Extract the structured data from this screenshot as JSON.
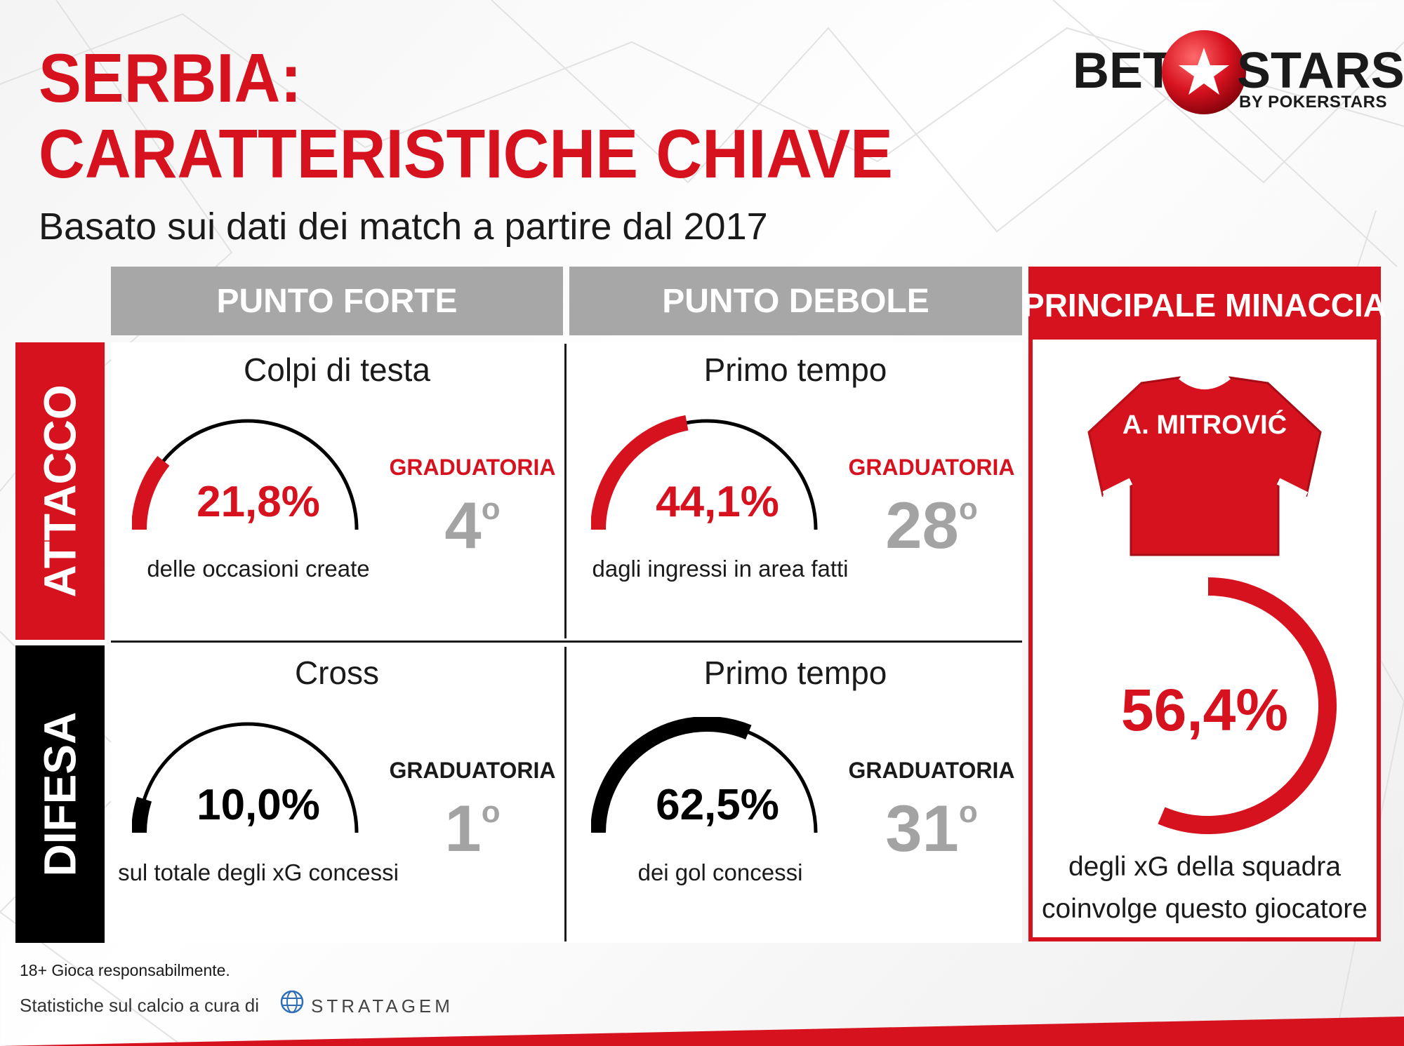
{
  "title_line1": "SERBIA:",
  "title_line2": "CARATTERISTICHE CHIAVE",
  "subtitle": "Basato sui dati dei match a partire dal 2017",
  "logo": {
    "left": "BET",
    "right": "STARS",
    "sub": "BY POKERSTARS"
  },
  "columns": {
    "strength": "PUNTO FORTE",
    "weakness": "PUNTO DEBOLE",
    "threat": "PRINCIPALE MINACCIA"
  },
  "rows": {
    "attack": "ATTACCO",
    "defense": "DIFESA"
  },
  "cells": {
    "attack_strength": {
      "title": "Colpi di testa",
      "value": "21,8%",
      "fraction": 0.218,
      "caption": "delle occasioni create",
      "rank_label": "GRADUATORIA",
      "rank": "4",
      "rank_suffix": "o",
      "color": "#d7121f"
    },
    "attack_weakness": {
      "title": "Primo tempo",
      "value": "44,1%",
      "fraction": 0.441,
      "caption": "dagli ingressi in area fatti",
      "rank_label": "GRADUATORIA",
      "rank": "28",
      "rank_suffix": "o",
      "color": "#d7121f"
    },
    "defense_strength": {
      "title": "Cross",
      "value": "10,0%",
      "fraction": 0.1,
      "caption": "sul totale degli xG concessi",
      "rank_label": "GRADUATORIA",
      "rank": "1",
      "rank_suffix": "o",
      "color": "#000000"
    },
    "defense_weakness": {
      "title": "Primo tempo",
      "value": "62,5%",
      "fraction": 0.625,
      "caption": "dei gol concessi",
      "rank_label": "GRADUATORIA",
      "rank": "31",
      "rank_suffix": "o",
      "color": "#000000"
    }
  },
  "threat": {
    "player": "A. MITROVIĆ",
    "value": "56,4%",
    "fraction": 0.564,
    "caption_line1": "degli xG della squadra",
    "caption_line2": "coinvolge questo giocatore"
  },
  "footer": {
    "age_notice": "18+ Gioca responsabilmente.",
    "credit": "Statistiche sul calcio a cura di",
    "provider": "STRATAGEM"
  },
  "colors": {
    "accent": "#d7121f",
    "header_gray": "#a7a7a7",
    "rank_gray": "#a3a3a3",
    "dark": "#1a1a1a"
  }
}
